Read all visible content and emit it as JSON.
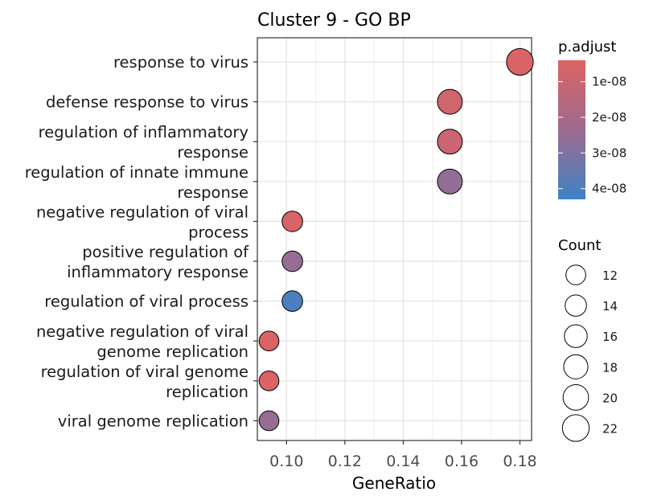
{
  "chart_data": {
    "type": "scatter",
    "title": "Cluster 9 - GO BP",
    "xlabel": "GeneRatio",
    "ylabel": "",
    "xlim": [
      0.09,
      0.184
    ],
    "xticks": [
      "0.10",
      "0.12",
      "0.14",
      "0.16",
      "0.18"
    ],
    "xtick_values": [
      0.1,
      0.12,
      0.14,
      0.16,
      0.18
    ],
    "grid": true,
    "categories": [
      [
        "response to virus"
      ],
      [
        "defense response to virus"
      ],
      [
        "regulation of inflammatory",
        "response"
      ],
      [
        "regulation of innate immune",
        "response"
      ],
      [
        "negative regulation of viral",
        "process"
      ],
      [
        "positive regulation of",
        "inflammatory response"
      ],
      [
        "regulation of viral process"
      ],
      [
        "negative regulation of viral",
        "genome replication"
      ],
      [
        "regulation of viral genome",
        "replication"
      ],
      [
        "viral genome replication"
      ]
    ],
    "points": [
      {
        "gene_ratio": 0.18,
        "count": 22,
        "p_adjust": 5e-09
      },
      {
        "gene_ratio": 0.156,
        "count": 19,
        "p_adjust": 8e-09
      },
      {
        "gene_ratio": 0.156,
        "count": 19,
        "p_adjust": 1e-08
      },
      {
        "gene_ratio": 0.156,
        "count": 19,
        "p_adjust": 2.6e-08
      },
      {
        "gene_ratio": 0.102,
        "count": 13,
        "p_adjust": 6e-09
      },
      {
        "gene_ratio": 0.102,
        "count": 13,
        "p_adjust": 2.5e-08
      },
      {
        "gene_ratio": 0.102,
        "count": 13,
        "p_adjust": 4e-08
      },
      {
        "gene_ratio": 0.094,
        "count": 12,
        "p_adjust": 5e-09
      },
      {
        "gene_ratio": 0.094,
        "count": 12,
        "p_adjust": 5e-09
      },
      {
        "gene_ratio": 0.094,
        "count": 12,
        "p_adjust": 2.5e-08
      }
    ],
    "legend_color": {
      "title": "p.adjust",
      "placement": "right",
      "ticks": [
        "1e-08",
        "2e-08",
        "3e-08",
        "4e-08"
      ],
      "tick_values": [
        1e-08,
        2e-08,
        3e-08,
        4e-08
      ],
      "range": [
        4e-09,
        4.3e-08
      ],
      "low_color": "#dd6363",
      "mid_color": "#9e6b8f",
      "high_color": "#3e82c5"
    },
    "legend_size": {
      "title": "Count",
      "placement": "right",
      "ticks": [
        "12",
        "14",
        "16",
        "18",
        "20",
        "22"
      ],
      "tick_values": [
        12,
        14,
        16,
        18,
        20,
        22
      ]
    }
  }
}
